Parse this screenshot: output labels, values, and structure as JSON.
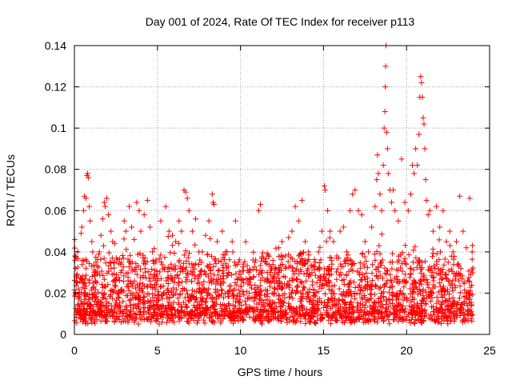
{
  "chart_data": {
    "type": "scatter",
    "title": "Day 001 of 2024, Rate Of TEC Index for receiver p113",
    "xlabel": "GPS time / hours",
    "ylabel": "ROTI / TECUs",
    "xlim": [
      0,
      25
    ],
    "ylim": [
      0,
      0.14
    ],
    "xticks": [
      "0",
      "5",
      "10",
      "15",
      "20",
      "25"
    ],
    "xtick_values": [
      0,
      5,
      10,
      15,
      20,
      25
    ],
    "yticks": [
      "0",
      "0.02",
      "0.04",
      "0.06",
      "0.08",
      "0.1",
      "0.12",
      "0.14"
    ],
    "ytick_values": [
      0,
      0.02,
      0.04,
      0.06,
      0.08,
      0.1,
      0.12,
      0.14
    ],
    "grid": true,
    "marker": "+",
    "color": "#ff0000",
    "x_range_of_data": [
      0,
      24
    ],
    "series": [
      {
        "name": "",
        "points": [
          [
            0.02,
            0.046
          ],
          [
            0.05,
            0.038
          ],
          [
            0.08,
            0.032
          ],
          [
            0.12,
            0.028
          ],
          [
            0.15,
            0.025
          ],
          [
            0.2,
            0.04
          ],
          [
            0.25,
            0.022
          ],
          [
            0.3,
            0.018
          ],
          [
            0.4,
            0.049
          ],
          [
            0.45,
            0.052
          ],
          [
            0.55,
            0.06
          ],
          [
            0.6,
            0.067
          ],
          [
            0.7,
            0.066
          ],
          [
            0.75,
            0.077
          ],
          [
            0.8,
            0.078
          ],
          [
            0.85,
            0.076
          ],
          [
            0.9,
            0.062
          ],
          [
            0.95,
            0.055
          ],
          [
            1.05,
            0.045
          ],
          [
            1.1,
            0.04
          ],
          [
            1.2,
            0.03
          ],
          [
            1.35,
            0.025
          ],
          [
            1.5,
            0.04
          ],
          [
            1.6,
            0.048
          ],
          [
            1.7,
            0.056
          ],
          [
            1.8,
            0.064
          ],
          [
            1.85,
            0.062
          ],
          [
            1.95,
            0.066
          ],
          [
            2.05,
            0.058
          ],
          [
            2.2,
            0.05
          ],
          [
            2.3,
            0.045
          ],
          [
            2.4,
            0.035
          ],
          [
            2.55,
            0.02
          ],
          [
            2.8,
            0.03
          ],
          [
            3.0,
            0.055
          ],
          [
            3.1,
            0.05
          ],
          [
            3.3,
            0.062
          ],
          [
            3.45,
            0.052
          ],
          [
            3.6,
            0.046
          ],
          [
            3.75,
            0.064
          ],
          [
            3.9,
            0.06
          ],
          [
            4.0,
            0.05
          ],
          [
            4.2,
            0.058
          ],
          [
            4.4,
            0.065
          ],
          [
            4.55,
            0.052
          ],
          [
            4.7,
            0.04
          ],
          [
            4.9,
            0.035
          ],
          [
            5.2,
            0.055
          ],
          [
            5.5,
            0.062
          ],
          [
            5.7,
            0.05
          ],
          [
            5.9,
            0.048
          ],
          [
            6.1,
            0.045
          ],
          [
            6.3,
            0.055
          ],
          [
            6.45,
            0.05
          ],
          [
            6.6,
            0.07
          ],
          [
            6.7,
            0.069
          ],
          [
            6.8,
            0.066
          ],
          [
            6.9,
            0.06
          ],
          [
            7.1,
            0.05
          ],
          [
            7.3,
            0.056
          ],
          [
            7.5,
            0.04
          ],
          [
            7.7,
            0.04
          ],
          [
            7.9,
            0.048
          ],
          [
            8.1,
            0.055
          ],
          [
            8.3,
            0.068
          ],
          [
            8.35,
            0.064
          ],
          [
            8.4,
            0.063
          ],
          [
            8.6,
            0.045
          ],
          [
            8.9,
            0.05
          ],
          [
            9.1,
            0.04
          ],
          [
            9.3,
            0.03
          ],
          [
            9.5,
            0.045
          ],
          [
            9.7,
            0.055
          ],
          [
            9.9,
            0.035
          ],
          [
            10.2,
            0.025
          ],
          [
            10.5,
            0.03
          ],
          [
            10.8,
            0.028
          ],
          [
            11.1,
            0.06
          ],
          [
            11.2,
            0.063
          ],
          [
            11.5,
            0.035
          ],
          [
            11.8,
            0.03
          ],
          [
            12.1,
            0.032
          ],
          [
            12.3,
            0.042
          ],
          [
            12.5,
            0.045
          ],
          [
            12.7,
            0.038
          ],
          [
            12.9,
            0.047
          ],
          [
            13.1,
            0.05
          ],
          [
            13.3,
            0.062
          ],
          [
            13.5,
            0.055
          ],
          [
            13.7,
            0.065
          ],
          [
            13.9,
            0.045
          ],
          [
            14.1,
            0.04
          ],
          [
            14.3,
            0.03
          ],
          [
            14.5,
            0.035
          ],
          [
            14.7,
            0.04
          ],
          [
            14.9,
            0.05
          ],
          [
            15.05,
            0.072
          ],
          [
            15.1,
            0.07
          ],
          [
            15.25,
            0.06
          ],
          [
            15.4,
            0.05
          ],
          [
            15.6,
            0.045
          ],
          [
            15.8,
            0.038
          ],
          [
            16.0,
            0.05
          ],
          [
            16.2,
            0.052
          ],
          [
            16.4,
            0.04
          ],
          [
            16.6,
            0.06
          ],
          [
            16.75,
            0.068
          ],
          [
            16.9,
            0.07
          ],
          [
            17.1,
            0.06
          ],
          [
            17.3,
            0.058
          ],
          [
            17.5,
            0.045
          ],
          [
            17.7,
            0.04
          ],
          [
            17.9,
            0.052
          ],
          [
            18.1,
            0.062
          ],
          [
            18.2,
            0.075
          ],
          [
            18.25,
            0.087
          ],
          [
            18.3,
            0.078
          ],
          [
            18.4,
            0.068
          ],
          [
            18.5,
            0.06
          ],
          [
            18.6,
            0.082
          ],
          [
            18.65,
            0.1
          ],
          [
            18.7,
            0.108
          ],
          [
            18.72,
            0.12
          ],
          [
            18.74,
            0.13
          ],
          [
            18.76,
            0.14
          ],
          [
            18.8,
            0.098
          ],
          [
            18.85,
            0.09
          ],
          [
            18.9,
            0.078
          ],
          [
            19.0,
            0.07
          ],
          [
            19.1,
            0.064
          ],
          [
            19.2,
            0.07
          ],
          [
            19.3,
            0.06
          ],
          [
            19.5,
            0.055
          ],
          [
            19.7,
            0.085
          ],
          [
            19.9,
            0.064
          ],
          [
            20.1,
            0.06
          ],
          [
            20.25,
            0.068
          ],
          [
            20.35,
            0.082
          ],
          [
            20.45,
            0.078
          ],
          [
            20.55,
            0.09
          ],
          [
            20.65,
            0.082
          ],
          [
            20.75,
            0.097
          ],
          [
            20.8,
            0.115
          ],
          [
            20.85,
            0.125
          ],
          [
            20.9,
            0.122
          ],
          [
            20.95,
            0.115
          ],
          [
            21.0,
            0.105
          ],
          [
            21.05,
            0.102
          ],
          [
            21.1,
            0.09
          ],
          [
            21.15,
            0.075
          ],
          [
            21.2,
            0.065
          ],
          [
            21.3,
            0.058
          ],
          [
            21.4,
            0.06
          ],
          [
            21.6,
            0.05
          ],
          [
            21.8,
            0.062
          ],
          [
            22.0,
            0.052
          ],
          [
            22.2,
            0.06
          ],
          [
            22.4,
            0.045
          ],
          [
            22.6,
            0.05
          ],
          [
            22.8,
            0.04
          ],
          [
            23.0,
            0.045
          ],
          [
            23.2,
            0.067
          ],
          [
            23.4,
            0.05
          ],
          [
            23.6,
            0.042
          ],
          [
            23.8,
            0.066
          ],
          [
            23.95,
            0.04
          ]
        ]
      }
    ]
  }
}
